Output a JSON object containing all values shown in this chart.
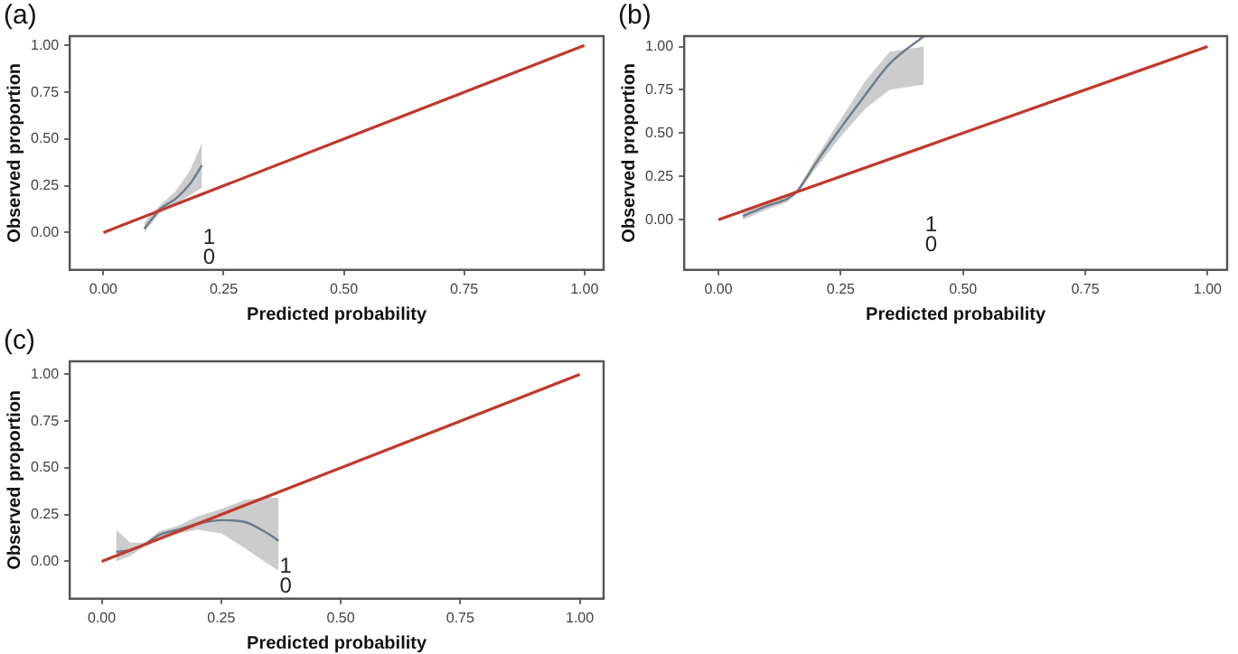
{
  "chart_data": [
    {
      "type": "line",
      "title": "(a)",
      "xlabel": "Predicted probability",
      "ylabel": "Observed proportion",
      "xlim": [
        -0.07,
        1.04
      ],
      "ylim": [
        -0.2,
        1.05
      ],
      "xticks": [
        {
          "value": 0,
          "label": "0.00"
        },
        {
          "value": 0.25,
          "label": "0.25"
        },
        {
          "value": 0.5,
          "label": "0.50"
        },
        {
          "value": 0.75,
          "label": "0.75"
        },
        {
          "value": 1,
          "label": "1.00"
        }
      ],
      "yticks": [
        {
          "value": 0,
          "label": "0.00"
        },
        {
          "value": 0.25,
          "label": "0.25"
        },
        {
          "value": 0.5,
          "label": "0.50"
        },
        {
          "value": 0.75,
          "label": "0.75"
        },
        {
          "value": 1,
          "label": "1.00"
        }
      ],
      "series": [
        {
          "color": "#c0392b",
          "x": [
            0,
            1
          ],
          "values": [
            0,
            1
          ]
        },
        {
          "color": "#6b7b8c",
          "x": [
            0.085,
            0.1,
            0.12,
            0.15,
            0.18,
            0.205
          ],
          "values": [
            0.02,
            0.07,
            0.13,
            0.18,
            0.26,
            0.36
          ],
          "lower": [
            0.0,
            0.05,
            0.11,
            0.15,
            0.2,
            0.24
          ],
          "upper": [
            0.05,
            0.1,
            0.15,
            0.22,
            0.33,
            0.48
          ]
        }
      ],
      "annotations": [
        "1",
        "0"
      ]
    },
    {
      "type": "line",
      "title": "(b)",
      "xlabel": "Predicted probability",
      "ylabel": "Observed proportion",
      "xlim": [
        -0.07,
        1.04
      ],
      "ylim": [
        -0.29,
        1.06
      ],
      "xticks": [
        {
          "value": 0,
          "label": "0.00"
        },
        {
          "value": 0.25,
          "label": "0.25"
        },
        {
          "value": 0.5,
          "label": "0.50"
        },
        {
          "value": 0.75,
          "label": "0.75"
        },
        {
          "value": 1,
          "label": "1.00"
        }
      ],
      "yticks": [
        {
          "value": 0,
          "label": "0.00"
        },
        {
          "value": 0.25,
          "label": "0.25"
        },
        {
          "value": 0.5,
          "label": "0.50"
        },
        {
          "value": 0.75,
          "label": "0.75"
        },
        {
          "value": 1,
          "label": "1.00"
        }
      ],
      "series": [
        {
          "color": "#c0392b",
          "x": [
            0,
            1
          ],
          "values": [
            0,
            1
          ]
        },
        {
          "color": "#6b7b8c",
          "x": [
            0.05,
            0.1,
            0.14,
            0.16,
            0.2,
            0.25,
            0.3,
            0.35,
            0.42
          ],
          "values": [
            0.02,
            0.08,
            0.12,
            0.16,
            0.33,
            0.53,
            0.72,
            0.9,
            1.06
          ],
          "lower": [
            0.0,
            0.06,
            0.1,
            0.15,
            0.3,
            0.48,
            0.64,
            0.75,
            0.78
          ],
          "upper": [
            0.05,
            0.1,
            0.14,
            0.17,
            0.36,
            0.58,
            0.8,
            0.97,
            1.0
          ]
        }
      ],
      "annotations": [
        "1",
        "0"
      ]
    },
    {
      "type": "line",
      "title": "(c)",
      "xlabel": "Predicted probability",
      "ylabel": "Observed proportion",
      "xlim": [
        -0.067,
        1.05
      ],
      "ylim": [
        -0.2,
        1.07
      ],
      "xticks": [
        {
          "value": 0,
          "label": "0.00"
        },
        {
          "value": 0.25,
          "label": "0.25"
        },
        {
          "value": 0.5,
          "label": "0.50"
        },
        {
          "value": 0.75,
          "label": "0.75"
        },
        {
          "value": 1,
          "label": "1.00"
        }
      ],
      "yticks": [
        {
          "value": 0,
          "label": "0.00"
        },
        {
          "value": 0.25,
          "label": "0.25"
        },
        {
          "value": 0.5,
          "label": "0.50"
        },
        {
          "value": 0.75,
          "label": "0.75"
        },
        {
          "value": 1,
          "label": "1.00"
        }
      ],
      "series": [
        {
          "color": "#c0392b",
          "x": [
            0,
            1
          ],
          "values": [
            0,
            1
          ]
        },
        {
          "color": "#6b7b8c",
          "x": [
            0.03,
            0.06,
            0.09,
            0.12,
            0.16,
            0.2,
            0.25,
            0.3,
            0.34,
            0.37
          ],
          "values": [
            0.05,
            0.06,
            0.09,
            0.14,
            0.17,
            0.2,
            0.22,
            0.21,
            0.16,
            0.11
          ],
          "lower": [
            0.0,
            0.03,
            0.08,
            0.12,
            0.15,
            0.17,
            0.15,
            0.07,
            0.0,
            -0.05
          ],
          "upper": [
            0.17,
            0.1,
            0.1,
            0.16,
            0.19,
            0.24,
            0.28,
            0.33,
            0.34,
            0.34
          ]
        }
      ],
      "annotations": [
        "1",
        "0"
      ]
    }
  ]
}
